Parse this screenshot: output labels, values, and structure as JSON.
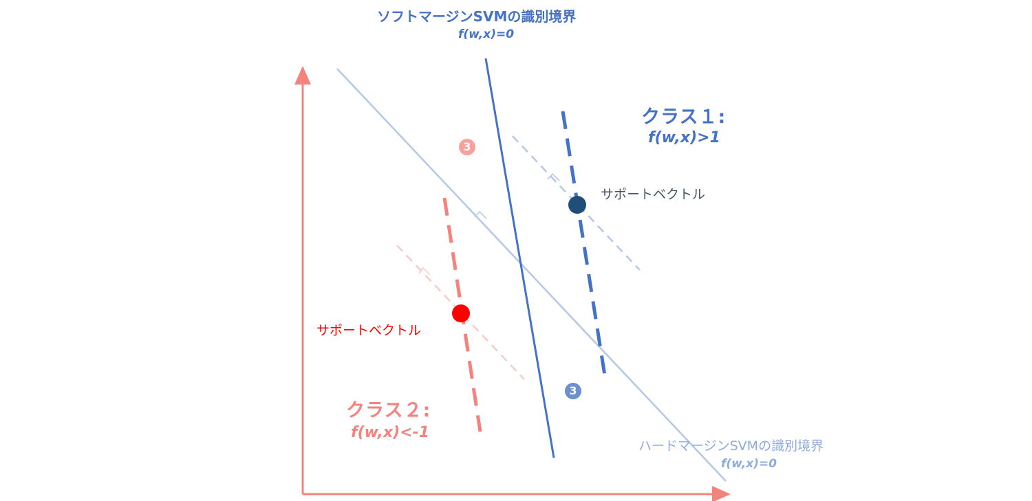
{
  "soft_boundary": {
    "title": "ソフトマージンSVMの識別境界",
    "equation": "f(w,x)=0"
  },
  "hard_boundary": {
    "title": "ハードマージンSVMの識別境界",
    "equation": "f(w,x)=0"
  },
  "class1": {
    "title": "クラス１:",
    "equation": "f(w,x)>1",
    "support_vector_label": "サポートベクトル"
  },
  "class2": {
    "title": "クラス２:",
    "equation": "f(w,x)<-1",
    "support_vector_label": "サポートベクトル"
  },
  "badges": {
    "pink": "3",
    "blue": "3"
  },
  "colors": {
    "axis": "#f4837d",
    "soft_boundary": "#4472c4",
    "hard_boundary": "#b4c7e7",
    "class1_margin": "#4472c4",
    "class2_margin": "#f4837d",
    "class1_support_vector": "#1f4e79",
    "class2_support_vector": "#ff0000"
  }
}
